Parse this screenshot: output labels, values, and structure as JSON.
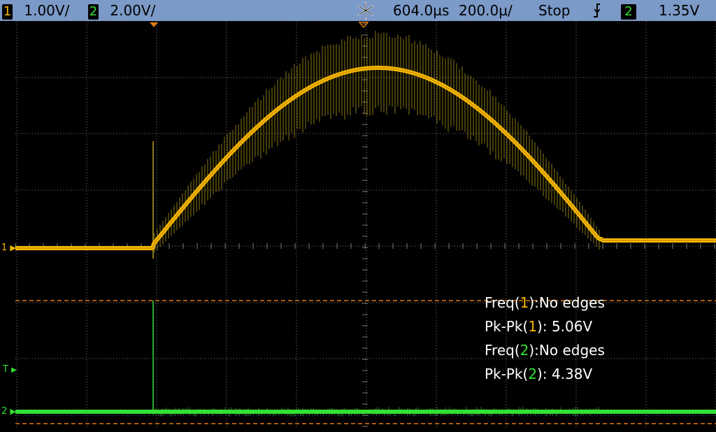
{
  "status_bar": {
    "ch1": {
      "number": "1",
      "scale": "1.00V/",
      "color": "#f5b800"
    },
    "ch2": {
      "number": "2",
      "scale": "2.00V/",
      "color": "#33e033"
    },
    "acquisition_icon": "snowflake-icon",
    "time_position": "604.0µs",
    "time_scale": "200.0µ/",
    "run_state": "Stop",
    "trigger_slope_icon": "falling-edge-icon",
    "trigger_source": "2",
    "trigger_level": "1.35V"
  },
  "markers": {
    "ch1_ground": "1",
    "ch2_ground": "2",
    "trigger": "T"
  },
  "measurements": [
    {
      "label": "Freq(",
      "ch": "1",
      "sep": "):",
      "value": "No edges"
    },
    {
      "label": "Pk-Pk(",
      "ch": "1",
      "sep": "): ",
      "value": "5.06V"
    },
    {
      "label": "Freq(",
      "ch": "2",
      "sep": "):",
      "value": "No edges"
    },
    {
      "label": "Pk-Pk(",
      "ch": "2",
      "sep": "): ",
      "value": "4.38V"
    }
  ],
  "colors": {
    "background": "#000000",
    "grid": "#7a7a7a",
    "status_bar": "#7c9ac8",
    "ch1": "#f5b800",
    "ch2": "#33e033",
    "cursor": "#e07a10"
  }
}
